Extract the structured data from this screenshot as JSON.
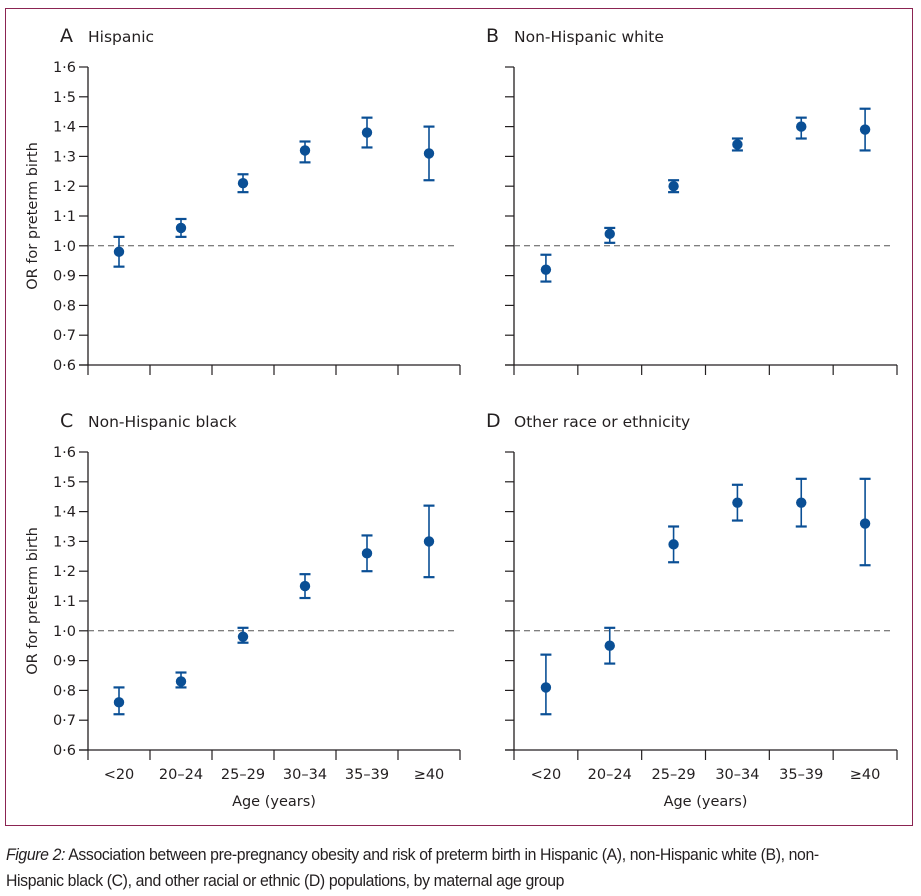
{
  "figure": {
    "caption_label": "Figure 2:",
    "caption_text": " Association between pre-pregnancy obesity and risk of preterm birth in Hispanic (A), non-Hispanic white (B), non-Hispanic black (C), and other racial or ethnic (D) populations, by maternal age group",
    "frame_color": "#8b2452",
    "marker_color": "#0a4f95"
  },
  "chart_data": [
    {
      "type": "scatter",
      "panel": "A",
      "title": "Hispanic",
      "xlabel": "",
      "ylabel": "OR for preterm birth",
      "categories": [
        "<20",
        "20–24",
        "25–29",
        "30–34",
        "35–39",
        "≥40"
      ],
      "show_x_tick_labels": false,
      "ylim": [
        0.6,
        1.6
      ],
      "yticks": [
        "0·6",
        "0·7",
        "0·8",
        "0·9",
        "1·0",
        "1·1",
        "1·2",
        "1·3",
        "1·4",
        "1·5",
        "1·6"
      ],
      "show_y_tick_labels": true,
      "reference_line": 1.0,
      "values": [
        0.98,
        1.06,
        1.21,
        1.32,
        1.38,
        1.31
      ],
      "ci_low": [
        0.93,
        1.03,
        1.18,
        1.28,
        1.33,
        1.22
      ],
      "ci_high": [
        1.03,
        1.09,
        1.24,
        1.35,
        1.43,
        1.4
      ]
    },
    {
      "type": "scatter",
      "panel": "B",
      "title": "Non-Hispanic white",
      "xlabel": "",
      "ylabel": "",
      "categories": [
        "<20",
        "20–24",
        "25–29",
        "30–34",
        "35–39",
        "≥40"
      ],
      "show_x_tick_labels": false,
      "ylim": [
        0.6,
        1.6
      ],
      "yticks": [
        "0·6",
        "0·7",
        "0·8",
        "0·9",
        "1·0",
        "1·1",
        "1·2",
        "1·3",
        "1·4",
        "1·5",
        "1·6"
      ],
      "show_y_tick_labels": false,
      "reference_line": 1.0,
      "values": [
        0.92,
        1.04,
        1.2,
        1.34,
        1.4,
        1.39
      ],
      "ci_low": [
        0.88,
        1.01,
        1.18,
        1.32,
        1.36,
        1.32
      ],
      "ci_high": [
        0.97,
        1.06,
        1.22,
        1.36,
        1.43,
        1.46
      ]
    },
    {
      "type": "scatter",
      "panel": "C",
      "title": "Non-Hispanic black",
      "xlabel": "Age (years)",
      "ylabel": "OR for preterm birth",
      "categories": [
        "<20",
        "20–24",
        "25–29",
        "30–34",
        "35–39",
        "≥40"
      ],
      "show_x_tick_labels": true,
      "ylim": [
        0.6,
        1.6
      ],
      "yticks": [
        "0·6",
        "0·7",
        "0·8",
        "0·9",
        "1·0",
        "1·1",
        "1·2",
        "1·3",
        "1·4",
        "1·5",
        "1·6"
      ],
      "show_y_tick_labels": true,
      "reference_line": 1.0,
      "values": [
        0.76,
        0.83,
        0.98,
        1.15,
        1.26,
        1.3
      ],
      "ci_low": [
        0.72,
        0.81,
        0.96,
        1.11,
        1.2,
        1.18
      ],
      "ci_high": [
        0.81,
        0.86,
        1.01,
        1.19,
        1.32,
        1.42
      ]
    },
    {
      "type": "scatter",
      "panel": "D",
      "title": "Other race or ethnicity",
      "xlabel": "Age (years)",
      "ylabel": "",
      "categories": [
        "<20",
        "20–24",
        "25–29",
        "30–34",
        "35–39",
        "≥40"
      ],
      "show_x_tick_labels": true,
      "ylim": [
        0.6,
        1.6
      ],
      "yticks": [
        "0·6",
        "0·7",
        "0·8",
        "0·9",
        "1·0",
        "1·1",
        "1·2",
        "1·3",
        "1·4",
        "1·5",
        "1·6"
      ],
      "show_y_tick_labels": false,
      "reference_line": 1.0,
      "values": [
        0.81,
        0.95,
        1.29,
        1.43,
        1.43,
        1.36
      ],
      "ci_low": [
        0.72,
        0.89,
        1.23,
        1.37,
        1.35,
        1.22
      ],
      "ci_high": [
        0.92,
        1.01,
        1.35,
        1.49,
        1.51,
        1.51
      ]
    }
  ]
}
